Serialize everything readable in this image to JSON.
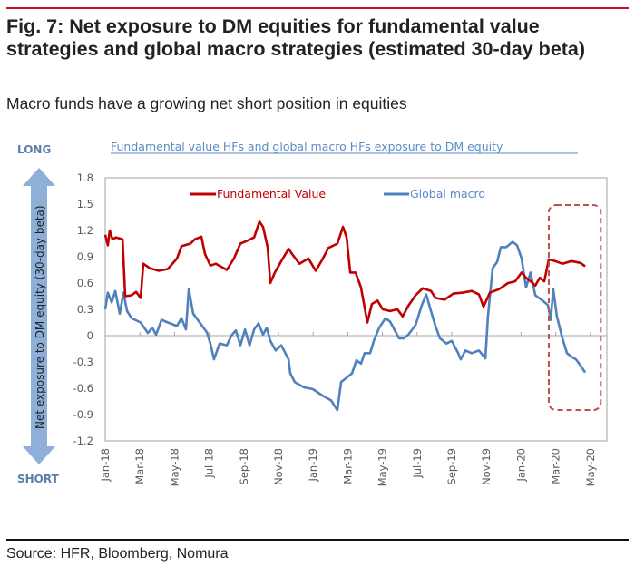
{
  "header": {
    "title": "Fig. 7: Net exposure to DM equities for fundamental value strategies and global macro strategies (estimated 30-day beta)",
    "subtitle": "Macro funds have a growing net short position in equities"
  },
  "footer": {
    "source": "Source: HFR, Bloomberg, Nomura"
  },
  "colors": {
    "accent_rule": "#c8102e",
    "fundamental_value": "#c00000",
    "global_macro": "#4f81bd",
    "arrow": "#8eb0d8",
    "highlight_box": "#c0504d"
  },
  "chart_data": {
    "type": "line",
    "title": "Fundamental value HFs and global macro HFs exposure to DM equity",
    "ylabel": "Net exposure to DM equity (30-day beta)",
    "ylabel_top": "LONG",
    "ylabel_bottom": "SHORT",
    "xlabel": "",
    "ylim": [
      -1.2,
      1.8
    ],
    "yticks": [
      "1.8",
      "1.5",
      "1.2",
      "0.9",
      "0.6",
      "0.3",
      "0",
      "-0.3",
      "-0.6",
      "-0.9",
      "-1.2"
    ],
    "ytick_values": [
      1.8,
      1.5,
      1.2,
      0.9,
      0.6,
      0.3,
      0,
      -0.3,
      -0.6,
      -0.9,
      -1.2
    ],
    "x_unit": "months since Jan-18",
    "xlim": [
      0,
      29
    ],
    "xticks": [
      "Jan-18",
      "Mar-18",
      "May-18",
      "Jul-18",
      "Sep-18",
      "Nov-18",
      "Jan-19",
      "Mar-19",
      "May-19",
      "Jul-19",
      "Sep-19",
      "Nov-19",
      "Jan-20",
      "Mar-20",
      "May-20"
    ],
    "xtick_values": [
      0,
      2,
      4,
      6,
      8,
      10,
      12,
      14,
      16,
      18,
      20,
      22,
      24,
      26,
      28
    ],
    "legend": [
      "Fundamental Value",
      "Global macro"
    ],
    "legend_position": "top",
    "grid": false,
    "annotation": "dashed box highlighting Mar-20 to May-20",
    "annotation_range": [
      25.6,
      28.6
    ],
    "series": [
      {
        "name": "Fundamental Value",
        "points": [
          [
            0,
            1.15
          ],
          [
            0.15,
            1.03
          ],
          [
            0.26,
            1.2
          ],
          [
            0.42,
            1.1
          ],
          [
            0.63,
            1.12
          ],
          [
            1.0,
            1.1
          ],
          [
            1.15,
            0.45
          ],
          [
            1.52,
            0.46
          ],
          [
            1.78,
            0.5
          ],
          [
            2.04,
            0.43
          ],
          [
            2.2,
            0.82
          ],
          [
            2.57,
            0.77
          ],
          [
            3.09,
            0.74
          ],
          [
            3.61,
            0.76
          ],
          [
            4.14,
            0.88
          ],
          [
            4.4,
            1.02
          ],
          [
            4.92,
            1.05
          ],
          [
            5.18,
            1.1
          ],
          [
            5.55,
            1.13
          ],
          [
            5.76,
            0.93
          ],
          [
            6.07,
            0.8
          ],
          [
            6.39,
            0.82
          ],
          [
            7.02,
            0.75
          ],
          [
            7.43,
            0.88
          ],
          [
            7.8,
            1.05
          ],
          [
            8.17,
            1.08
          ],
          [
            8.59,
            1.12
          ],
          [
            8.9,
            1.3
          ],
          [
            9.11,
            1.24
          ],
          [
            9.37,
            1.01
          ],
          [
            9.53,
            0.6
          ],
          [
            9.79,
            0.72
          ],
          [
            10.16,
            0.85
          ],
          [
            10.58,
            0.99
          ],
          [
            10.79,
            0.93
          ],
          [
            11.21,
            0.82
          ],
          [
            11.73,
            0.88
          ],
          [
            12.15,
            0.74
          ],
          [
            12.51,
            0.86
          ],
          [
            12.88,
            1.0
          ],
          [
            13.4,
            1.05
          ],
          [
            13.72,
            1.24
          ],
          [
            13.93,
            1.12
          ],
          [
            14.14,
            0.72
          ],
          [
            14.45,
            0.72
          ],
          [
            14.76,
            0.55
          ],
          [
            15.13,
            0.15
          ],
          [
            15.39,
            0.36
          ],
          [
            15.71,
            0.4
          ],
          [
            16.02,
            0.3
          ],
          [
            16.44,
            0.28
          ],
          [
            16.86,
            0.3
          ],
          [
            17.17,
            0.22
          ],
          [
            17.49,
            0.34
          ],
          [
            17.91,
            0.46
          ],
          [
            18.32,
            0.54
          ],
          [
            18.8,
            0.51
          ],
          [
            19.06,
            0.43
          ],
          [
            19.58,
            0.41
          ],
          [
            20.1,
            0.48
          ],
          [
            20.63,
            0.49
          ],
          [
            21.15,
            0.51
          ],
          [
            21.57,
            0.47
          ],
          [
            21.83,
            0.33
          ],
          [
            22.2,
            0.49
          ],
          [
            22.72,
            0.53
          ],
          [
            23.25,
            0.6
          ],
          [
            23.66,
            0.62
          ],
          [
            24.03,
            0.72
          ],
          [
            24.29,
            0.66
          ],
          [
            24.55,
            0.62
          ],
          [
            24.82,
            0.57
          ],
          [
            25.08,
            0.66
          ],
          [
            25.34,
            0.62
          ],
          [
            25.6,
            0.87
          ],
          [
            25.97,
            0.85
          ],
          [
            26.39,
            0.82
          ],
          [
            26.91,
            0.85
          ],
          [
            27.43,
            0.83
          ],
          [
            27.7,
            0.79
          ]
        ]
      },
      {
        "name": "Global macro",
        "points": [
          [
            0,
            0.3
          ],
          [
            0.15,
            0.49
          ],
          [
            0.37,
            0.38
          ],
          [
            0.58,
            0.51
          ],
          [
            0.84,
            0.25
          ],
          [
            1.05,
            0.49
          ],
          [
            1.26,
            0.28
          ],
          [
            1.52,
            0.2
          ],
          [
            2.04,
            0.15
          ],
          [
            2.46,
            0.03
          ],
          [
            2.72,
            0.09
          ],
          [
            2.93,
            0.01
          ],
          [
            3.25,
            0.18
          ],
          [
            3.61,
            0.15
          ],
          [
            4.14,
            0.11
          ],
          [
            4.4,
            0.2
          ],
          [
            4.66,
            0.07
          ],
          [
            4.82,
            0.53
          ],
          [
            5.08,
            0.25
          ],
          [
            5.45,
            0.15
          ],
          [
            5.86,
            0.04
          ],
          [
            6.07,
            -0.09
          ],
          [
            6.28,
            -0.27
          ],
          [
            6.6,
            -0.09
          ],
          [
            7.02,
            -0.11
          ],
          [
            7.28,
            0.0
          ],
          [
            7.54,
            0.06
          ],
          [
            7.8,
            -0.11
          ],
          [
            8.07,
            0.07
          ],
          [
            8.33,
            -0.11
          ],
          [
            8.59,
            0.07
          ],
          [
            8.85,
            0.14
          ],
          [
            9.11,
            0.01
          ],
          [
            9.32,
            0.09
          ],
          [
            9.53,
            -0.06
          ],
          [
            9.84,
            -0.17
          ],
          [
            10.16,
            -0.11
          ],
          [
            10.58,
            -0.27
          ],
          [
            10.68,
            -0.43
          ],
          [
            10.94,
            -0.53
          ],
          [
            11.47,
            -0.59
          ],
          [
            11.99,
            -0.61
          ],
          [
            12.51,
            -0.68
          ],
          [
            13.04,
            -0.74
          ],
          [
            13.4,
            -0.85
          ],
          [
            13.61,
            -0.53
          ],
          [
            13.93,
            -0.48
          ],
          [
            14.24,
            -0.43
          ],
          [
            14.5,
            -0.28
          ],
          [
            14.76,
            -0.32
          ],
          [
            14.97,
            -0.2
          ],
          [
            15.29,
            -0.2
          ],
          [
            15.5,
            -0.06
          ],
          [
            15.81,
            0.09
          ],
          [
            16.18,
            0.2
          ],
          [
            16.44,
            0.16
          ],
          [
            16.96,
            -0.03
          ],
          [
            17.23,
            -0.03
          ],
          [
            17.49,
            0.01
          ],
          [
            17.91,
            0.12
          ],
          [
            18.27,
            0.35
          ],
          [
            18.53,
            0.47
          ],
          [
            18.8,
            0.28
          ],
          [
            19.06,
            0.11
          ],
          [
            19.32,
            -0.03
          ],
          [
            19.69,
            -0.09
          ],
          [
            20.0,
            -0.06
          ],
          [
            20.37,
            -0.2
          ],
          [
            20.52,
            -0.27
          ],
          [
            20.79,
            -0.17
          ],
          [
            21.15,
            -0.2
          ],
          [
            21.57,
            -0.17
          ],
          [
            21.94,
            -0.26
          ],
          [
            22.09,
            0.22
          ],
          [
            22.36,
            0.77
          ],
          [
            22.62,
            0.84
          ],
          [
            22.83,
            1.01
          ],
          [
            23.14,
            1.01
          ],
          [
            23.51,
            1.07
          ],
          [
            23.77,
            1.03
          ],
          [
            24.03,
            0.88
          ],
          [
            24.29,
            0.55
          ],
          [
            24.55,
            0.72
          ],
          [
            24.82,
            0.46
          ],
          [
            25.18,
            0.41
          ],
          [
            25.55,
            0.35
          ],
          [
            25.71,
            0.18
          ],
          [
            25.86,
            0.53
          ],
          [
            26.07,
            0.22
          ],
          [
            26.39,
            -0.03
          ],
          [
            26.65,
            -0.2
          ],
          [
            26.91,
            -0.24
          ],
          [
            27.17,
            -0.27
          ],
          [
            27.43,
            -0.34
          ],
          [
            27.7,
            -0.42
          ]
        ]
      }
    ]
  }
}
